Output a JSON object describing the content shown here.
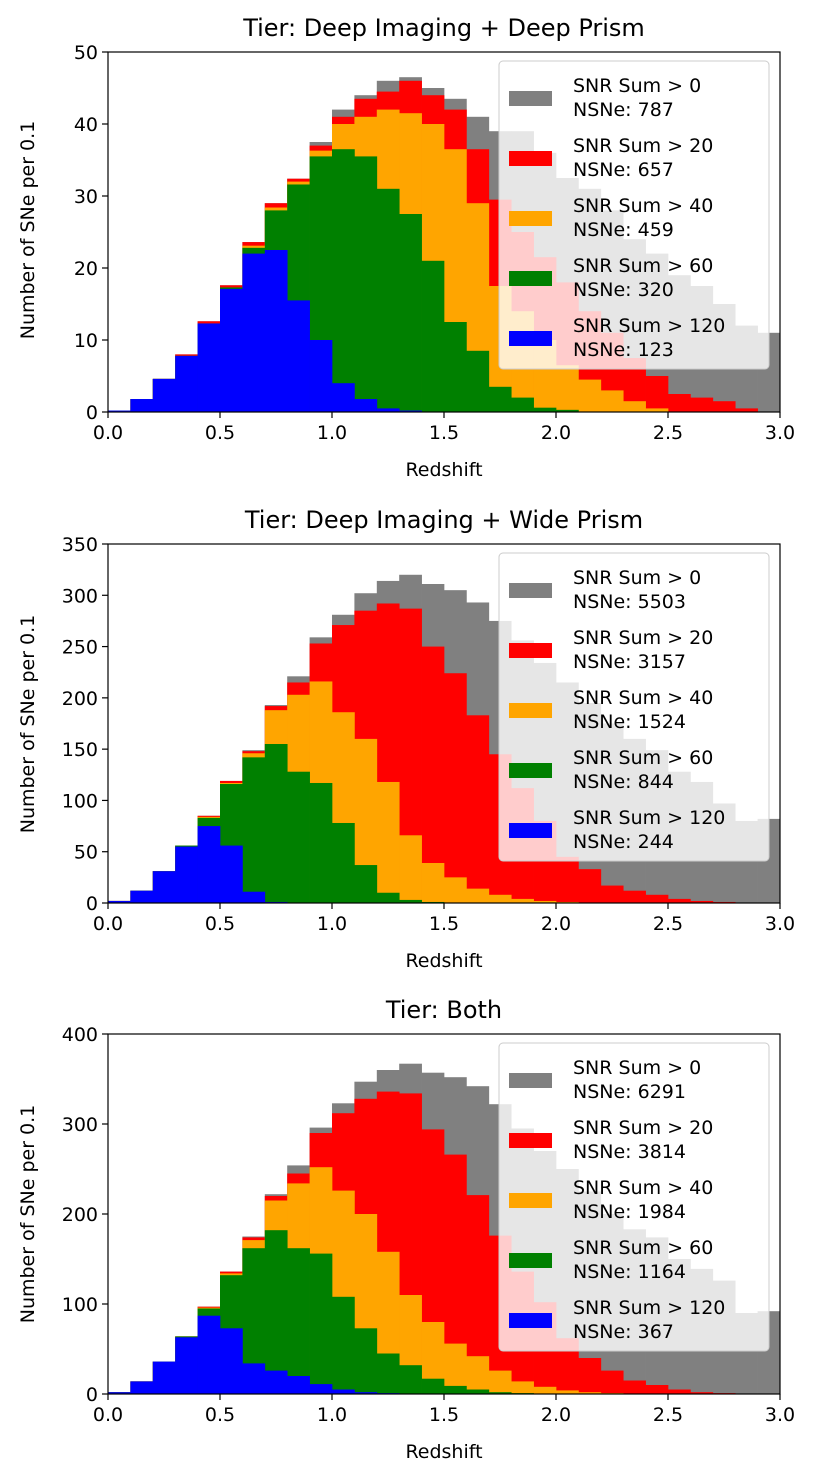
{
  "chart_data": [
    {
      "type": "bar",
      "title": "Tier: Deep Imaging + Deep Prism",
      "xlabel": "Redshift",
      "ylabel": "Number of SNe per 0.1",
      "xlim": [
        0.0,
        3.0
      ],
      "ylim": [
        0,
        50
      ],
      "xticks": [
        "0.0",
        "0.5",
        "1.0",
        "1.5",
        "2.0",
        "2.5",
        "3.0"
      ],
      "yticks": [
        "0",
        "10",
        "20",
        "30",
        "40",
        "50"
      ],
      "legend_position": "top-right",
      "bin_edges": [
        0.0,
        0.1,
        0.2,
        0.3,
        0.4,
        0.5,
        0.6,
        0.7,
        0.8,
        0.9,
        1.0,
        1.1,
        1.2,
        1.3,
        1.4,
        1.5,
        1.6,
        1.7,
        1.8,
        1.9,
        2.0,
        2.1,
        2.2,
        2.3,
        2.4,
        2.5,
        2.6,
        2.7,
        2.8,
        2.9,
        3.0
      ],
      "series": [
        {
          "name": "SNR Sum > 0",
          "count_label": "NSNe: 787",
          "color": "#808080",
          "values": [
            0.2,
            1.8,
            4.6,
            8.0,
            12.6,
            17.6,
            23.6,
            29.0,
            32.4,
            37.5,
            42.0,
            44.0,
            46.0,
            46.5,
            45.0,
            43.5,
            41.0,
            39.0,
            39.0,
            36.0,
            32.5,
            31.0,
            28.0,
            24.0,
            22.0,
            19.0,
            17.5,
            15.0,
            12.0,
            11.0
          ]
        },
        {
          "name": "SNR Sum > 20",
          "count_label": "NSNe: 657",
          "color": "#ff0000",
          "values": [
            0.2,
            1.8,
            4.6,
            8.0,
            12.6,
            17.6,
            23.6,
            29.0,
            32.4,
            37.0,
            41.0,
            43.5,
            44.5,
            46.0,
            44.0,
            42.0,
            36.5,
            29.5,
            25.0,
            21.5,
            18.0,
            14.0,
            11.0,
            7.5,
            5.0,
            2.5,
            2.0,
            1.5,
            0.5,
            0.0
          ]
        },
        {
          "name": "SNR Sum > 40",
          "count_label": "NSNe: 459",
          "color": "#ffa500",
          "values": [
            0.2,
            1.8,
            4.6,
            7.8,
            12.3,
            17.3,
            23.1,
            28.4,
            32.0,
            36.3,
            40.0,
            41.0,
            42.0,
            41.5,
            40.0,
            36.5,
            29.0,
            17.5,
            14.0,
            10.0,
            6.5,
            4.5,
            3.0,
            1.5,
            0.5,
            0.0,
            0.0,
            0.0,
            0.0,
            0.0
          ]
        },
        {
          "name": "SNR Sum > 60",
          "count_label": "NSNe: 320",
          "color": "#008000",
          "values": [
            0.2,
            1.8,
            4.6,
            7.8,
            12.3,
            17.3,
            22.8,
            28.0,
            31.6,
            35.5,
            36.5,
            35.5,
            31.0,
            27.5,
            21.0,
            12.5,
            8.5,
            3.5,
            2.0,
            0.6,
            0.3,
            0.0,
            0.0,
            0.0,
            0.0,
            0.0,
            0.0,
            0.0,
            0.0,
            0.0
          ]
        },
        {
          "name": "SNR Sum > 120",
          "count_label": "NSNe: 123",
          "color": "#0000ff",
          "values": [
            0.2,
            1.8,
            4.6,
            7.8,
            12.3,
            17.1,
            22.0,
            22.5,
            15.5,
            10.0,
            4.0,
            1.8,
            0.5,
            0.2,
            0.0,
            0.0,
            0.0,
            0.0,
            0.0,
            0.0,
            0.0,
            0.0,
            0.0,
            0.0,
            0.0,
            0.0,
            0.0,
            0.0,
            0.0,
            0.0
          ]
        }
      ]
    },
    {
      "type": "bar",
      "title": "Tier: Deep Imaging + Wide Prism",
      "xlabel": "Redshift",
      "ylabel": "Number of SNe per 0.1",
      "xlim": [
        0.0,
        3.0
      ],
      "ylim": [
        0,
        350
      ],
      "xticks": [
        "0.0",
        "0.5",
        "1.0",
        "1.5",
        "2.0",
        "2.5",
        "3.0"
      ],
      "yticks": [
        "0",
        "50",
        "100",
        "150",
        "200",
        "250",
        "300",
        "350"
      ],
      "legend_position": "top-right",
      "bin_edges": [
        0.0,
        0.1,
        0.2,
        0.3,
        0.4,
        0.5,
        0.6,
        0.7,
        0.8,
        0.9,
        1.0,
        1.1,
        1.2,
        1.3,
        1.4,
        1.5,
        1.6,
        1.7,
        1.8,
        1.9,
        2.0,
        2.1,
        2.2,
        2.3,
        2.4,
        2.5,
        2.6,
        2.7,
        2.8,
        2.9,
        3.0
      ],
      "series": [
        {
          "name": "SNR Sum > 0",
          "count_label": "NSNe: 5503",
          "color": "#808080",
          "values": [
            2,
            12,
            31,
            56,
            85,
            119,
            149,
            193,
            221,
            259,
            281,
            302,
            314,
            320,
            311,
            305,
            293,
            275,
            256,
            234,
            215,
            195,
            175,
            160,
            149,
            128,
            118,
            97,
            80,
            82
          ]
        },
        {
          "name": "SNR Sum > 20",
          "count_label": "NSNe: 3157",
          "color": "#ff0000",
          "values": [
            2,
            12,
            31,
            56,
            85,
            119,
            148,
            192,
            215,
            253,
            271,
            285,
            292,
            287,
            250,
            224,
            183,
            145,
            112,
            80,
            45,
            33,
            17,
            12,
            8,
            4,
            2,
            1,
            0,
            0
          ]
        },
        {
          "name": "SNR Sum > 40",
          "count_label": "NSNe: 1524",
          "color": "#ffa500",
          "values": [
            2,
            12,
            31,
            56,
            84,
            117,
            146,
            188,
            203,
            216,
            186,
            160,
            118,
            66,
            39,
            25,
            14,
            8,
            4,
            2,
            1,
            0,
            0,
            0,
            0,
            0,
            0,
            0,
            0,
            0
          ]
        },
        {
          "name": "SNR Sum > 60",
          "count_label": "NSNe: 844",
          "color": "#008000",
          "values": [
            2,
            12,
            31,
            56,
            83,
            116,
            142,
            155,
            128,
            117,
            78,
            37,
            10,
            3,
            1,
            0,
            0,
            0,
            0,
            0,
            0,
            0,
            0,
            0,
            0,
            0,
            0,
            0,
            0,
            0
          ]
        },
        {
          "name": "SNR Sum > 120",
          "count_label": "NSNe: 244",
          "color": "#0000ff",
          "values": [
            2,
            12,
            31,
            55,
            75,
            56,
            11,
            1,
            0,
            0,
            0,
            0,
            0,
            0,
            0,
            0,
            0,
            0,
            0,
            0,
            0,
            0,
            0,
            0,
            0,
            0,
            0,
            0,
            0,
            0
          ]
        }
      ]
    },
    {
      "type": "bar",
      "title": "Tier: Both",
      "xlabel": "Redshift",
      "ylabel": "Number of SNe per 0.1",
      "xlim": [
        0.0,
        3.0
      ],
      "ylim": [
        0,
        400
      ],
      "xticks": [
        "0.0",
        "0.5",
        "1.0",
        "1.5",
        "2.0",
        "2.5",
        "3.0"
      ],
      "yticks": [
        "0",
        "100",
        "200",
        "300",
        "400"
      ],
      "legend_position": "top-right",
      "bin_edges": [
        0.0,
        0.1,
        0.2,
        0.3,
        0.4,
        0.5,
        0.6,
        0.7,
        0.8,
        0.9,
        1.0,
        1.1,
        1.2,
        1.3,
        1.4,
        1.5,
        1.6,
        1.7,
        1.8,
        1.9,
        2.0,
        2.1,
        2.2,
        2.3,
        2.4,
        2.5,
        2.6,
        2.7,
        2.8,
        2.9,
        3.0
      ],
      "series": [
        {
          "name": "SNR Sum > 0",
          "count_label": "NSNe: 6291",
          "color": "#808080",
          "values": [
            2,
            14,
            36,
            64,
            97,
            136,
            175,
            222,
            254,
            296,
            323,
            347,
            360,
            367,
            357,
            352,
            342,
            322,
            295,
            270,
            250,
            225,
            200,
            183,
            174,
            150,
            139,
            126,
            90,
            92
          ]
        },
        {
          "name": "SNR Sum > 20",
          "count_label": "NSNe: 3814",
          "color": "#ff0000",
          "values": [
            2,
            14,
            36,
            64,
            97,
            136,
            174,
            220,
            245,
            290,
            312,
            328,
            336,
            334,
            294,
            266,
            221,
            176,
            136,
            102,
            62,
            40,
            26,
            15,
            10,
            5,
            2,
            1,
            0,
            0
          ]
        },
        {
          "name": "SNR Sum > 40",
          "count_label": "NSNe: 1984",
          "color": "#ffa500",
          "values": [
            2,
            14,
            36,
            64,
            96,
            134,
            171,
            215,
            234,
            252,
            226,
            200,
            158,
            110,
            80,
            56,
            42,
            26,
            14,
            8,
            4,
            2,
            1,
            0,
            0,
            0,
            0,
            0,
            0,
            0
          ]
        },
        {
          "name": "SNR Sum > 60",
          "count_label": "NSNe: 1164",
          "color": "#008000",
          "values": [
            2,
            14,
            36,
            64,
            95,
            132,
            162,
            182,
            162,
            156,
            108,
            73,
            45,
            32,
            17,
            9,
            5,
            2,
            1,
            0,
            0,
            0,
            0,
            0,
            0,
            0,
            0,
            0,
            0,
            0
          ]
        },
        {
          "name": "SNR Sum > 120",
          "count_label": "NSNe: 367",
          "color": "#0000ff",
          "values": [
            2,
            14,
            36,
            63,
            87,
            73,
            34,
            26,
            20,
            11,
            5,
            2,
            1,
            0,
            0,
            0,
            0,
            0,
            0,
            0,
            0,
            0,
            0,
            0,
            0,
            0,
            0,
            0,
            0,
            0
          ]
        }
      ]
    }
  ]
}
